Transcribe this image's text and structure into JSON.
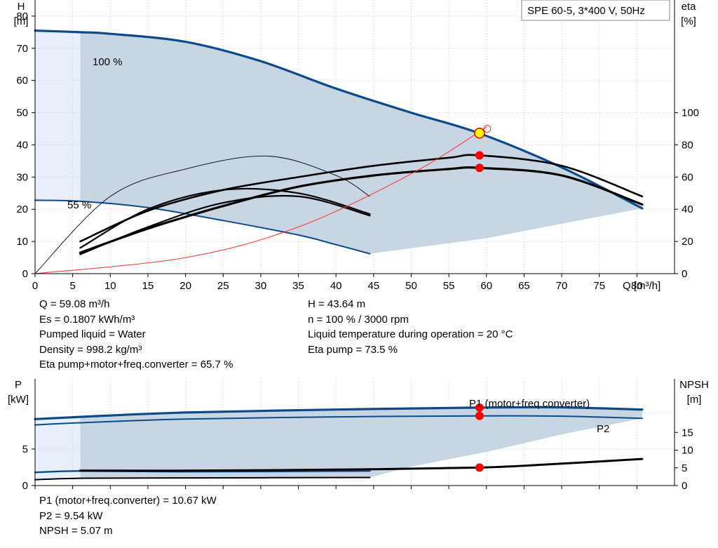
{
  "title_box": "SPE 60-5, 3*400 V, 50Hz",
  "colors": {
    "primary_curve": "#0d4a8a",
    "fill": "#c8d6e4",
    "light_fill": "#e7f0fa",
    "duty_point": "#ff0000",
    "marker_yellow": "#ffff00",
    "system_curve": "#ff3030",
    "grid": "#c8c8c8"
  },
  "chart_data": [
    {
      "type": "line",
      "title": "",
      "xlabel": "Q [m³/h]",
      "ylabel": "H\n[m]",
      "ylabel2": "eta\n[%]",
      "xlim": [
        0,
        85
      ],
      "ylim": [
        0,
        85
      ],
      "ylim2": [
        0,
        170
      ],
      "x_ticks": [
        "0",
        "5",
        "10",
        "15",
        "20",
        "25",
        "30",
        "35",
        "40",
        "45",
        "50",
        "55",
        "60",
        "65",
        "70",
        "75",
        "80"
      ],
      "y_ticks": [
        "0",
        "10",
        "20",
        "30",
        "40",
        "50",
        "60",
        "70",
        "80"
      ],
      "y2_ticks": [
        "0",
        "20",
        "40",
        "60",
        "80",
        "100"
      ],
      "grid": true,
      "annotations": [
        "100 %",
        "55 %"
      ],
      "series": [
        {
          "name": "100 %",
          "axis": "H",
          "x": [
            0,
            6,
            10,
            20,
            30,
            40,
            50,
            59.08,
            70,
            80.7
          ],
          "y": [
            75.5,
            75,
            74.5,
            72,
            66,
            57.5,
            50,
            43.6,
            33,
            20.3
          ]
        },
        {
          "name": "55 %",
          "axis": "H",
          "x": [
            0,
            6,
            15,
            25,
            35,
            40,
            44.5
          ],
          "y": [
            22.8,
            22.5,
            20.5,
            16.5,
            12,
            9,
            6.2
          ]
        },
        {
          "axis": "eta",
          "x": [
            6,
            15,
            25,
            35,
            45,
            55,
            59.08,
            70,
            80.7
          ],
          "y": [
            20,
            39,
            52,
            60,
            67,
            72,
            73.5,
            67,
            48
          ]
        },
        {
          "axis": "eta",
          "x": [
            6,
            15,
            25,
            35,
            45,
            55,
            59.08,
            70,
            80.7
          ],
          "y": [
            13,
            28,
            42,
            54,
            61,
            65,
            65.7,
            61,
            43
          ]
        },
        {
          "axis": "eta",
          "x": [
            6,
            15,
            25,
            35,
            44.5
          ],
          "y": [
            16,
            40,
            52,
            50,
            37
          ]
        },
        {
          "axis": "eta",
          "x": [
            6,
            15,
            25,
            35,
            44.5
          ],
          "y": [
            12,
            29,
            44,
            48,
            36
          ]
        },
        {
          "axis": "eta",
          "x": [
            0,
            10,
            20,
            31,
            40,
            44.5
          ],
          "y": [
            0,
            48,
            65,
            73,
            61,
            48
          ]
        },
        {
          "name": "system curve",
          "axis": "H",
          "x": [
            0,
            20,
            35,
            50,
            60
          ],
          "y": [
            0,
            5,
            14.5,
            31,
            45.5
          ]
        }
      ],
      "duty_point": {
        "Q": 59.08,
        "H": 43.64,
        "eta_pump": 73.5,
        "eta_total": 65.7
      }
    },
    {
      "type": "line",
      "title": "",
      "xlabel": "",
      "ylabel": "P\n[kW]",
      "ylabel2": "NPSH\n[m]",
      "xlim": [
        0,
        85
      ],
      "ylim": [
        0,
        14.6
      ],
      "y_ticks": [
        "0",
        "5"
      ],
      "y2_ticks": [
        "0",
        "5",
        "10",
        "15"
      ],
      "grid": true,
      "series": [
        {
          "name": "P1 (motor+freq.converter)",
          "axis": "P",
          "x": [
            0,
            6,
            20,
            40,
            59.08,
            70,
            80.7
          ],
          "y": [
            9.1,
            9.4,
            10,
            10.4,
            10.67,
            10.7,
            10.4
          ]
        },
        {
          "name": "P2",
          "axis": "P",
          "x": [
            0,
            6,
            20,
            40,
            59.08,
            70,
            80.7
          ],
          "y": [
            8.3,
            8.6,
            9.1,
            9.4,
            9.54,
            9.5,
            9.2
          ]
        },
        {
          "axis": "P",
          "x": [
            0,
            6,
            20,
            44.5
          ],
          "y": [
            1.8,
            2.0,
            1.9,
            2.0
          ]
        },
        {
          "axis": "P",
          "x": [
            0,
            6,
            20,
            44.5
          ],
          "y": [
            0.8,
            1.0,
            1.05,
            1.1
          ]
        },
        {
          "axis": "NPSH",
          "x": [
            6,
            20,
            40,
            59.08,
            70,
            80.7
          ],
          "y": [
            4.2,
            4.2,
            4.5,
            5.07,
            6.2,
            7.5
          ]
        }
      ]
    }
  ],
  "readout_top": {
    "left": [
      "Q = 59.08 m³/h",
      "Es = 0.1807 kWh/m³",
      "Pumped liquid = Water",
      "Density = 998.2 kg/m³",
      "Eta pump+motor+freq.converter = 65.7 %"
    ],
    "right": [
      "H = 43.64 m",
      "n = 100 % / 3000 rpm",
      "Liquid temperature during operation = 20 °C",
      "Eta pump = 73.5 %"
    ]
  },
  "readout_bottom": [
    "P1 (motor+freq.converter) = 10.67 kW",
    "P2 = 9.54 kW",
    "NPSH = 5.07 m"
  ]
}
